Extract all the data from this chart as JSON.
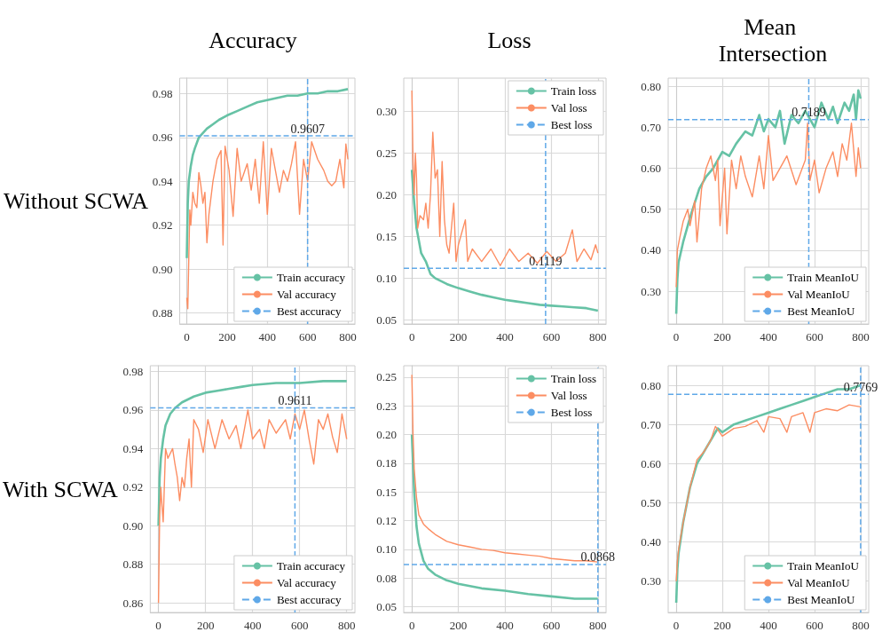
{
  "chart_data": [
    {
      "type": "line",
      "title": "Accuracy",
      "ylabel": "Without SCWA",
      "xlim": [
        -35,
        835
      ],
      "xticks": [
        0,
        200,
        400,
        600,
        800
      ],
      "ylim": [
        0.875,
        0.987
      ],
      "yticks": [
        {
          "value": 0.88,
          "label": "0.88"
        },
        {
          "value": 0.9,
          "label": "0.90"
        },
        {
          "value": 0.92,
          "label": "0.92"
        },
        {
          "value": 0.94,
          "label": "0.94"
        },
        {
          "value": 0.96,
          "label": "0.96"
        },
        {
          "value": 0.98,
          "label": "0.98"
        }
      ],
      "grid": true,
      "legend": "bottom right",
      "marker": "none",
      "series": [
        {
          "name": "Train accuracy",
          "color": "#66c2a5",
          "x": [
            0,
            5,
            10,
            20,
            30,
            40,
            60,
            80,
            100,
            130,
            160,
            200,
            250,
            300,
            350,
            400,
            450,
            500,
            550,
            600,
            650,
            700,
            750,
            800
          ],
          "values": [
            0.905,
            0.93,
            0.94,
            0.947,
            0.952,
            0.955,
            0.96,
            0.962,
            0.964,
            0.966,
            0.968,
            0.97,
            0.972,
            0.974,
            0.976,
            0.977,
            0.978,
            0.979,
            0.979,
            0.98,
            0.98,
            0.981,
            0.981,
            0.982
          ]
        },
        {
          "name": "Val accuracy",
          "color": "#fc8d62",
          "x": [
            0,
            5,
            10,
            15,
            20,
            30,
            40,
            50,
            60,
            70,
            80,
            90,
            100,
            110,
            130,
            150,
            170,
            180,
            190,
            210,
            230,
            250,
            270,
            300,
            320,
            340,
            360,
            380,
            400,
            420,
            440,
            460,
            480,
            500,
            520,
            540,
            560,
            580,
            600,
            620,
            650,
            680,
            700,
            720,
            740,
            760,
            780,
            790,
            800
          ],
          "values": [
            0.887,
            0.882,
            0.905,
            0.927,
            0.92,
            0.935,
            0.93,
            0.928,
            0.944,
            0.938,
            0.93,
            0.935,
            0.912,
            0.925,
            0.94,
            0.95,
            0.954,
            0.911,
            0.956,
            0.945,
            0.924,
            0.955,
            0.94,
            0.948,
            0.936,
            0.95,
            0.93,
            0.958,
            0.925,
            0.955,
            0.945,
            0.935,
            0.945,
            0.94,
            0.948,
            0.958,
            0.925,
            0.95,
            0.94,
            0.958,
            0.95,
            0.945,
            0.94,
            0.938,
            0.94,
            0.95,
            0.937,
            0.957,
            0.95
          ]
        }
      ],
      "ref_lines": [
        {
          "axis": "y",
          "value": 0.9607,
          "label": "Best accuracy",
          "color": "#5fa8e8",
          "line_style": "dashed"
        },
        {
          "axis": "x",
          "value": 600,
          "color": "#5fa8e8",
          "line_style": "dashed"
        }
      ],
      "annotations": [
        "0.9607"
      ]
    },
    {
      "type": "line",
      "title": "Loss",
      "xlim": [
        -35,
        835
      ],
      "xticks": [
        0,
        200,
        400,
        600,
        800
      ],
      "ylim": [
        0.045,
        0.34
      ],
      "yticks": [
        {
          "value": 0.05,
          "label": "0.05"
        },
        {
          "value": 0.1,
          "label": "0.10"
        },
        {
          "value": 0.15,
          "label": "0.15"
        },
        {
          "value": 0.2,
          "label": "0.20"
        },
        {
          "value": 0.25,
          "label": "0.25"
        },
        {
          "value": 0.3,
          "label": "0.30"
        }
      ],
      "grid": true,
      "legend": "top right",
      "marker": "none",
      "series": [
        {
          "name": "Train loss",
          "color": "#66c2a5",
          "x": [
            0,
            10,
            20,
            30,
            40,
            60,
            80,
            100,
            150,
            200,
            250,
            300,
            350,
            400,
            450,
            500,
            550,
            600,
            650,
            700,
            750,
            800
          ],
          "values": [
            0.23,
            0.19,
            0.16,
            0.145,
            0.13,
            0.12,
            0.105,
            0.1,
            0.093,
            0.088,
            0.084,
            0.08,
            0.077,
            0.074,
            0.072,
            0.07,
            0.068,
            0.067,
            0.066,
            0.065,
            0.064,
            0.061
          ]
        },
        {
          "name": "Val loss",
          "color": "#fc8d62",
          "x": [
            0,
            5,
            10,
            15,
            20,
            25,
            35,
            50,
            60,
            70,
            80,
            90,
            100,
            110,
            120,
            130,
            140,
            150,
            160,
            180,
            190,
            200,
            230,
            240,
            260,
            300,
            340,
            380,
            420,
            460,
            500,
            540,
            580,
            620,
            660,
            690,
            710,
            740,
            770,
            790,
            800
          ],
          "values": [
            0.325,
            0.24,
            0.2,
            0.25,
            0.22,
            0.16,
            0.175,
            0.17,
            0.19,
            0.16,
            0.2,
            0.275,
            0.22,
            0.23,
            0.15,
            0.24,
            0.17,
            0.14,
            0.13,
            0.19,
            0.12,
            0.14,
            0.17,
            0.12,
            0.135,
            0.12,
            0.135,
            0.115,
            0.135,
            0.12,
            0.13,
            0.118,
            0.132,
            0.12,
            0.13,
            0.158,
            0.12,
            0.135,
            0.122,
            0.14,
            0.13
          ]
        }
      ],
      "ref_lines": [
        {
          "axis": "y",
          "value": 0.1119,
          "label": "Best loss",
          "color": "#5fa8e8",
          "line_style": "dashed"
        },
        {
          "axis": "x",
          "value": 575,
          "color": "#5fa8e8",
          "line_style": "dashed"
        }
      ],
      "annotations": [
        "0.1119"
      ]
    },
    {
      "type": "line",
      "title": "Mean Intersection",
      "xlim": [
        -35,
        835
      ],
      "xticks": [
        0,
        200,
        400,
        600,
        800
      ],
      "ylim": [
        0.22,
        0.82
      ],
      "yticks": [
        {
          "value": 0.3,
          "label": "0.30"
        },
        {
          "value": 0.4,
          "label": "0.40"
        },
        {
          "value": 0.5,
          "label": "0.50"
        },
        {
          "value": 0.6,
          "label": "0.60"
        },
        {
          "value": 0.7,
          "label": "0.70"
        },
        {
          "value": 0.8,
          "label": "0.80"
        }
      ],
      "grid": true,
      "legend": "bottom right",
      "marker": "none",
      "series": [
        {
          "name": "Train MeanIoU",
          "color": "#66c2a5",
          "x": [
            0,
            5,
            10,
            30,
            60,
            100,
            130,
            160,
            200,
            230,
            260,
            300,
            330,
            360,
            380,
            400,
            430,
            450,
            470,
            500,
            530,
            560,
            580,
            600,
            630,
            660,
            680,
            700,
            730,
            750,
            770,
            780,
            790,
            800
          ],
          "values": [
            0.245,
            0.33,
            0.37,
            0.42,
            0.48,
            0.55,
            0.58,
            0.6,
            0.64,
            0.63,
            0.66,
            0.69,
            0.68,
            0.73,
            0.69,
            0.72,
            0.7,
            0.74,
            0.66,
            0.73,
            0.71,
            0.74,
            0.72,
            0.7,
            0.76,
            0.72,
            0.75,
            0.71,
            0.76,
            0.74,
            0.78,
            0.72,
            0.79,
            0.77
          ]
        },
        {
          "name": "Val MeanIoU",
          "color": "#fc8d62",
          "x": [
            0,
            5,
            15,
            30,
            50,
            60,
            80,
            90,
            110,
            130,
            150,
            170,
            180,
            190,
            210,
            220,
            240,
            260,
            280,
            300,
            330,
            360,
            380,
            400,
            420,
            450,
            480,
            520,
            560,
            570,
            580,
            600,
            620,
            650,
            680,
            700,
            720,
            740,
            760,
            780,
            790,
            800
          ],
          "values": [
            0.31,
            0.4,
            0.43,
            0.47,
            0.5,
            0.46,
            0.52,
            0.42,
            0.55,
            0.6,
            0.63,
            0.57,
            0.62,
            0.46,
            0.6,
            0.44,
            0.62,
            0.55,
            0.63,
            0.58,
            0.53,
            0.63,
            0.55,
            0.68,
            0.57,
            0.6,
            0.63,
            0.56,
            0.62,
            0.71,
            0.57,
            0.62,
            0.54,
            0.6,
            0.64,
            0.58,
            0.66,
            0.62,
            0.71,
            0.58,
            0.65,
            0.6
          ]
        }
      ],
      "ref_lines": [
        {
          "axis": "y",
          "value": 0.7189,
          "label": "Best MeanIoU",
          "color": "#5fa8e8",
          "line_style": "dashed"
        },
        {
          "axis": "x",
          "value": 575,
          "color": "#5fa8e8",
          "line_style": "dashed"
        }
      ],
      "annotations": [
        "0.7189"
      ]
    },
    {
      "type": "line",
      "ylabel": "With SCWA",
      "xlim": [
        -35,
        835
      ],
      "xticks": [
        0,
        200,
        400,
        600,
        800
      ],
      "ylim": [
        0.855,
        0.983
      ],
      "yticks": [
        {
          "value": 0.86,
          "label": "0.86"
        },
        {
          "value": 0.88,
          "label": "0.88"
        },
        {
          "value": 0.9,
          "label": "0.90"
        },
        {
          "value": 0.92,
          "label": "0.92"
        },
        {
          "value": 0.94,
          "label": "0.94"
        },
        {
          "value": 0.96,
          "label": "0.96"
        },
        {
          "value": 0.98,
          "label": "0.98"
        }
      ],
      "grid": true,
      "legend": "bottom right",
      "marker": "none",
      "series": [
        {
          "name": "Train accuracy",
          "color": "#66c2a5",
          "x": [
            0,
            5,
            10,
            20,
            30,
            50,
            70,
            100,
            150,
            200,
            250,
            300,
            350,
            400,
            500,
            600,
            700,
            800
          ],
          "values": [
            0.9,
            0.925,
            0.935,
            0.945,
            0.952,
            0.958,
            0.961,
            0.964,
            0.967,
            0.969,
            0.97,
            0.971,
            0.972,
            0.973,
            0.974,
            0.974,
            0.975,
            0.975
          ]
        },
        {
          "name": "Val accuracy",
          "color": "#fc8d62",
          "x": [
            0,
            5,
            10,
            15,
            20,
            30,
            40,
            60,
            70,
            80,
            90,
            100,
            110,
            120,
            130,
            140,
            150,
            170,
            190,
            210,
            240,
            270,
            300,
            330,
            350,
            380,
            400,
            430,
            450,
            470,
            500,
            540,
            560,
            580,
            600,
            620,
            640,
            660,
            680,
            700,
            720,
            740,
            760,
            780,
            800
          ],
          "values": [
            0.86,
            0.905,
            0.92,
            0.91,
            0.902,
            0.94,
            0.935,
            0.94,
            0.932,
            0.925,
            0.913,
            0.925,
            0.92,
            0.935,
            0.945,
            0.92,
            0.955,
            0.95,
            0.938,
            0.955,
            0.94,
            0.955,
            0.945,
            0.952,
            0.94,
            0.96,
            0.945,
            0.95,
            0.94,
            0.955,
            0.948,
            0.955,
            0.945,
            0.958,
            0.95,
            0.96,
            0.945,
            0.932,
            0.955,
            0.95,
            0.958,
            0.946,
            0.938,
            0.958,
            0.945
          ]
        }
      ],
      "ref_lines": [
        {
          "axis": "y",
          "value": 0.9611,
          "label": "Best accuracy",
          "color": "#5fa8e8",
          "line_style": "dashed"
        },
        {
          "axis": "x",
          "value": 580,
          "color": "#5fa8e8",
          "line_style": "dashed"
        }
      ],
      "annotations": [
        "0.9611"
      ]
    },
    {
      "type": "line",
      "xlim": [
        -35,
        835
      ],
      "xticks": [
        0,
        200,
        400,
        600,
        800
      ],
      "ylim": [
        0.045,
        0.26
      ],
      "yticks": [
        {
          "value": 0.05,
          "label": "0.05"
        },
        {
          "value": 0.075,
          "label": "0.08"
        },
        {
          "value": 0.1,
          "label": "0.10"
        },
        {
          "value": 0.125,
          "label": "0.12"
        },
        {
          "value": 0.15,
          "label": "0.15"
        },
        {
          "value": 0.175,
          "label": "0.18"
        },
        {
          "value": 0.2,
          "label": "0.20"
        },
        {
          "value": 0.225,
          "label": "0.23"
        },
        {
          "value": 0.25,
          "label": "0.25"
        }
      ],
      "grid": true,
      "legend": "top right",
      "marker": "none",
      "series": [
        {
          "name": "Train loss",
          "color": "#66c2a5",
          "x": [
            0,
            10,
            20,
            30,
            50,
            70,
            100,
            150,
            200,
            250,
            300,
            400,
            500,
            600,
            700,
            800
          ],
          "values": [
            0.2,
            0.15,
            0.12,
            0.105,
            0.09,
            0.083,
            0.078,
            0.073,
            0.07,
            0.068,
            0.066,
            0.064,
            0.061,
            0.059,
            0.057,
            0.057
          ]
        },
        {
          "name": "Val loss",
          "color": "#fc8d62",
          "x": [
            0,
            5,
            10,
            20,
            30,
            50,
            70,
            100,
            150,
            200,
            250,
            300,
            350,
            400,
            450,
            500,
            550,
            600,
            650,
            700,
            750,
            800
          ],
          "values": [
            0.252,
            0.2,
            0.17,
            0.145,
            0.13,
            0.122,
            0.118,
            0.113,
            0.107,
            0.104,
            0.102,
            0.1,
            0.099,
            0.097,
            0.096,
            0.095,
            0.094,
            0.092,
            0.091,
            0.09,
            0.09,
            0.089
          ]
        }
      ],
      "ref_lines": [
        {
          "axis": "y",
          "value": 0.0868,
          "label": "Best loss",
          "color": "#5fa8e8",
          "line_style": "dashed"
        },
        {
          "axis": "x",
          "value": 800,
          "color": "#5fa8e8",
          "line_style": "dashed"
        }
      ],
      "annotations": [
        "0.0868"
      ]
    },
    {
      "type": "line",
      "xlim": [
        -35,
        835
      ],
      "xticks": [
        0,
        200,
        400,
        600,
        800
      ],
      "ylim": [
        0.22,
        0.85
      ],
      "yticks": [
        {
          "value": 0.3,
          "label": "0.30"
        },
        {
          "value": 0.4,
          "label": "0.40"
        },
        {
          "value": 0.5,
          "label": "0.50"
        },
        {
          "value": 0.6,
          "label": "0.60"
        },
        {
          "value": 0.7,
          "label": "0.70"
        },
        {
          "value": 0.8,
          "label": "0.80"
        }
      ],
      "grid": true,
      "legend": "bottom right",
      "marker": "none",
      "series": [
        {
          "name": "Train MeanIoU",
          "color": "#66c2a5",
          "x": [
            0,
            5,
            10,
            30,
            60,
            90,
            120,
            150,
            180,
            200,
            250,
            300,
            350,
            400,
            450,
            500,
            550,
            600,
            650,
            700,
            750,
            800
          ],
          "values": [
            0.245,
            0.33,
            0.37,
            0.45,
            0.54,
            0.6,
            0.63,
            0.66,
            0.69,
            0.68,
            0.7,
            0.71,
            0.72,
            0.73,
            0.74,
            0.75,
            0.76,
            0.77,
            0.78,
            0.79,
            0.79,
            0.8
          ]
        },
        {
          "name": "Val MeanIoU",
          "color": "#fc8d62",
          "x": [
            0,
            5,
            10,
            30,
            60,
            90,
            120,
            150,
            170,
            200,
            250,
            300,
            350,
            380,
            400,
            450,
            480,
            500,
            550,
            580,
            600,
            650,
            700,
            750,
            800
          ],
          "values": [
            0.3,
            0.35,
            0.38,
            0.45,
            0.54,
            0.61,
            0.63,
            0.66,
            0.695,
            0.67,
            0.69,
            0.695,
            0.71,
            0.68,
            0.72,
            0.715,
            0.68,
            0.72,
            0.73,
            0.68,
            0.73,
            0.74,
            0.735,
            0.75,
            0.745
          ]
        }
      ],
      "ref_lines": [
        {
          "axis": "y",
          "value": 0.7769,
          "label": "Best MeanIoU",
          "color": "#5fa8e8",
          "line_style": "dashed"
        },
        {
          "axis": "x",
          "value": 800,
          "color": "#5fa8e8",
          "line_style": "dashed"
        }
      ],
      "annotations": [
        "0.7769"
      ]
    }
  ]
}
